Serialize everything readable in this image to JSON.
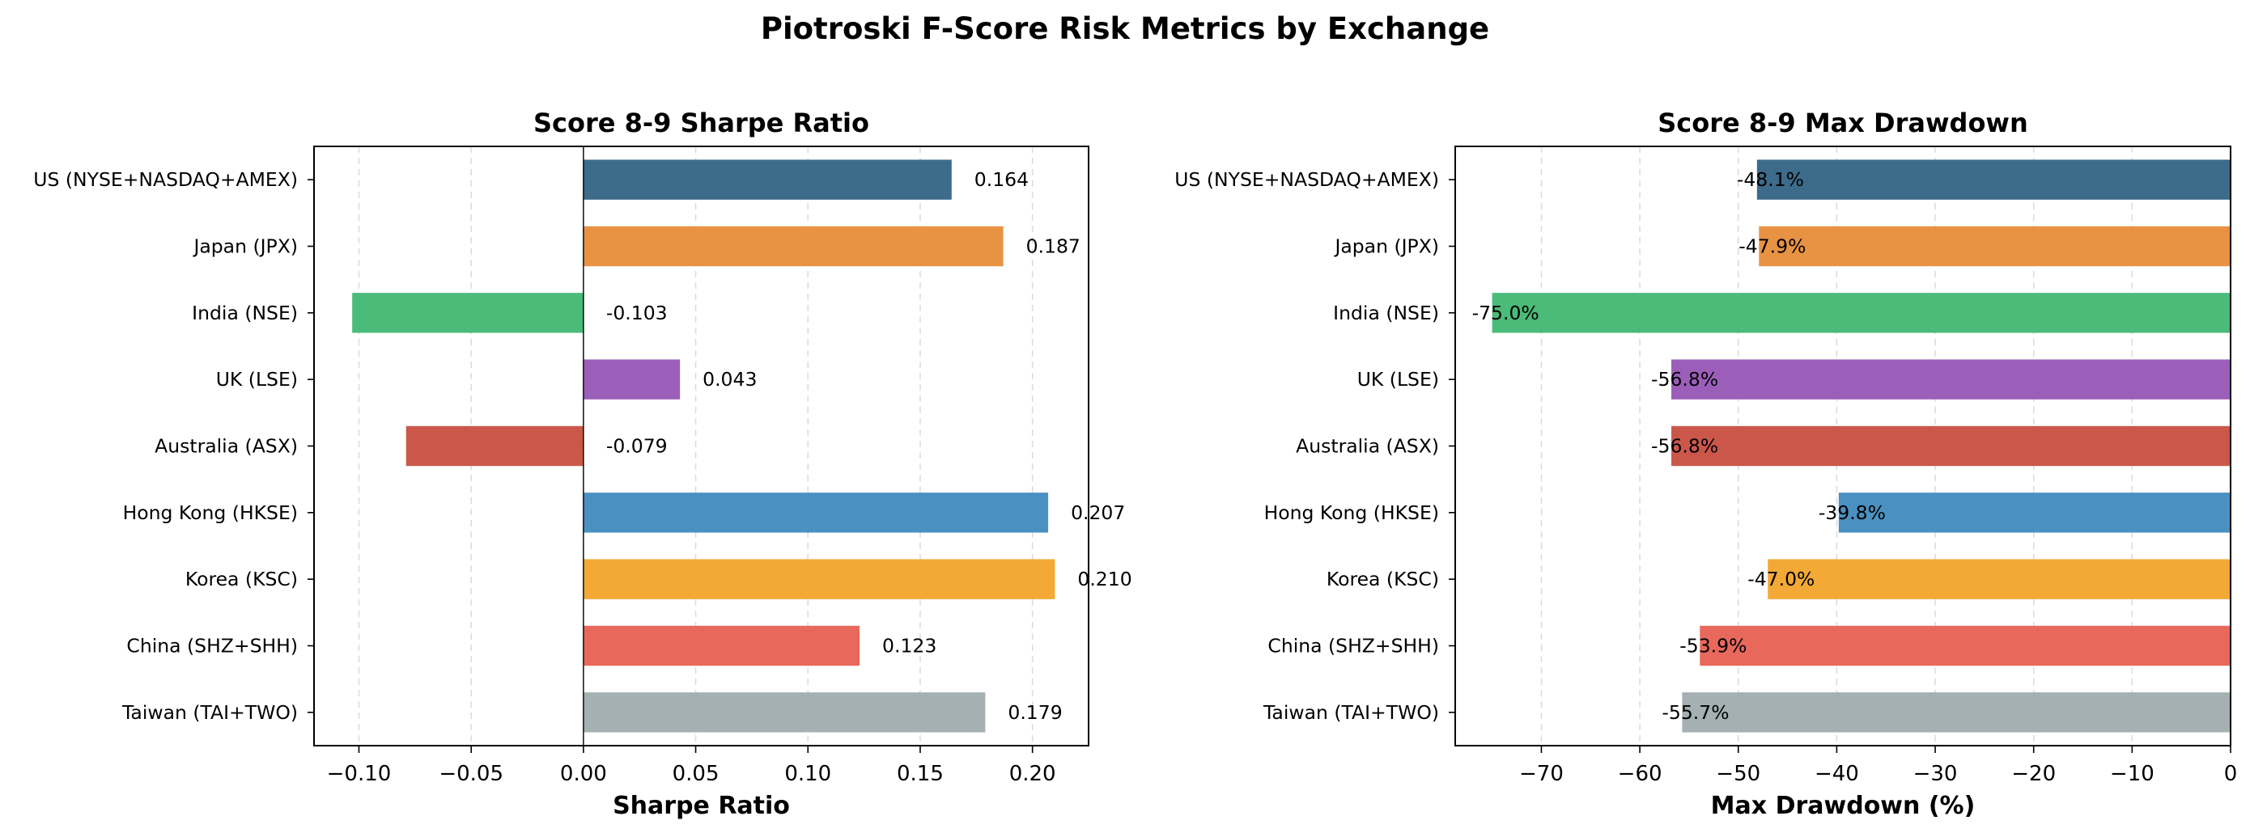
{
  "title": "Piotroski F-Score Risk Metrics by Exchange",
  "chart_data": [
    {
      "type": "bar",
      "orientation": "horizontal",
      "title": "Score 8-9 Sharpe Ratio",
      "xlabel": "Sharpe Ratio",
      "ylabel": "",
      "xlim": [
        -0.12,
        0.225
      ],
      "grid": "x-dashed",
      "xticks": [
        -0.1,
        -0.05,
        0.0,
        0.05,
        0.1,
        0.15,
        0.2
      ],
      "xtick_labels": [
        "−0.10",
        "−0.05",
        "0.00",
        "0.05",
        "0.10",
        "0.15",
        "0.20"
      ],
      "categories": [
        "US (NYSE+NASDAQ+AMEX)",
        "Japan (JPX)",
        "India (NSE)",
        "UK (LSE)",
        "Australia (ASX)",
        "Hong Kong (HKSE)",
        "Korea (KSC)",
        "China (SHZ+SHH)",
        "Taiwan (TAI+TWO)"
      ],
      "values": [
        0.164,
        0.187,
        -0.103,
        0.043,
        -0.079,
        0.207,
        0.21,
        0.123,
        0.179
      ],
      "value_labels": [
        "0.164",
        "0.187",
        "-0.103",
        "0.043",
        "-0.079",
        "0.207",
        "0.210",
        "0.123",
        "0.179"
      ],
      "colors": [
        "#3d6b8a",
        "#e89244",
        "#4abb78",
        "#9b5fba",
        "#cb574b",
        "#4a91c2",
        "#f2a935",
        "#e8685c",
        "#a4b0b1"
      ]
    },
    {
      "type": "bar",
      "orientation": "horizontal",
      "title": "Score 8-9 Max Drawdown",
      "xlabel": "Max Drawdown (%)",
      "ylabel": "",
      "xlim": [
        -78.75,
        0
      ],
      "grid": "x-dashed",
      "xticks": [
        -70,
        -60,
        -50,
        -40,
        -30,
        -20,
        -10,
        0
      ],
      "xtick_labels": [
        "−70",
        "−60",
        "−50",
        "−40",
        "−30",
        "−20",
        "−10",
        "0"
      ],
      "categories": [
        "US (NYSE+NASDAQ+AMEX)",
        "Japan (JPX)",
        "India (NSE)",
        "UK (LSE)",
        "Australia (ASX)",
        "Hong Kong (HKSE)",
        "Korea (KSC)",
        "China (SHZ+SHH)",
        "Taiwan (TAI+TWO)"
      ],
      "values": [
        -48.1,
        -47.9,
        -75.0,
        -56.8,
        -56.8,
        -39.8,
        -47.0,
        -53.9,
        -55.7
      ],
      "value_labels": [
        "-48.1%",
        "-47.9%",
        "-75.0%",
        "-56.8%",
        "-56.8%",
        "-39.8%",
        "-47.0%",
        "-53.9%",
        "-55.7%"
      ],
      "colors": [
        "#3d6b8a",
        "#e89244",
        "#4abb78",
        "#9b5fba",
        "#cb574b",
        "#4a91c2",
        "#f2a935",
        "#e8685c",
        "#a4b0b1"
      ]
    }
  ]
}
